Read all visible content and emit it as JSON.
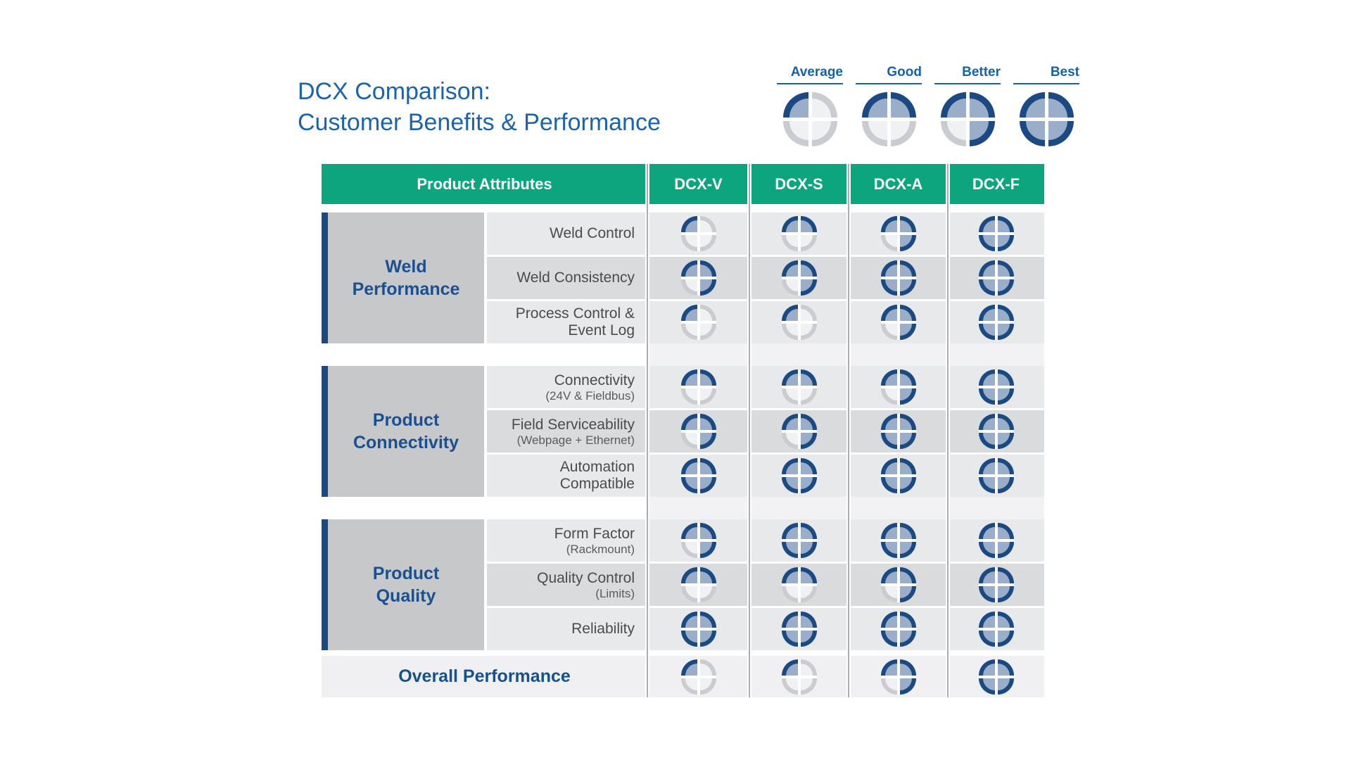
{
  "title": {
    "line1": "DCX Comparison:",
    "line2": "Customer Benefits & Performance"
  },
  "colors": {
    "header_green": "#0CA57D",
    "title_blue": "#1A63AE",
    "legend_blue": "#1761AC",
    "group_label_blue": "#1B5090",
    "ball_ring_filled": "#1B4A83",
    "ball_fill_filled": "#9AAEC9",
    "ball_ring_empty": "#CACCD1",
    "ball_fill_empty": "#F0F1F3",
    "row_light": "#E8E9EA",
    "row_dark": "#DADBDD",
    "group_box_gray": "#C7C8CA",
    "overall_row_bg": "#F0F0F2"
  },
  "rating_scale": {
    "1": "Average",
    "2": "Good",
    "3": "Better",
    "4": "Best"
  },
  "legend": {
    "items": [
      {
        "label": "Average",
        "level": 1
      },
      {
        "label": "Good",
        "level": 2
      },
      {
        "label": "Better",
        "level": 3
      },
      {
        "label": "Best",
        "level": 4
      }
    ]
  },
  "table": {
    "header": {
      "attributes_label": "Product Attributes",
      "columns": [
        "DCX-V",
        "DCX-S",
        "DCX-A",
        "DCX-F"
      ]
    },
    "groups": [
      {
        "name": "Weld\nPerformance",
        "rows": [
          {
            "attribute": "Weld Control",
            "subtitle": "",
            "ratings": [
              1,
              2,
              3,
              4
            ]
          },
          {
            "attribute": "Weld Consistency",
            "subtitle": "",
            "ratings": [
              3,
              3,
              4,
              4
            ]
          },
          {
            "attribute": "Process Control &\nEvent Log",
            "subtitle": "",
            "ratings": [
              1,
              1,
              3,
              4
            ]
          }
        ]
      },
      {
        "name": "Product\nConnectivity",
        "rows": [
          {
            "attribute": "Connectivity",
            "subtitle": "(24V & Fieldbus)",
            "ratings": [
              2,
              2,
              3,
              4
            ]
          },
          {
            "attribute": "Field Serviceability",
            "subtitle": "(Webpage + Ethernet)",
            "ratings": [
              3,
              3,
              4,
              4
            ]
          },
          {
            "attribute": "Automation\nCompatible",
            "subtitle": "",
            "ratings": [
              4,
              4,
              4,
              4
            ]
          }
        ]
      },
      {
        "name": "Product\nQuality",
        "rows": [
          {
            "attribute": "Form Factor",
            "subtitle": "(Rackmount)",
            "ratings": [
              3,
              4,
              4,
              4
            ]
          },
          {
            "attribute": "Quality Control",
            "subtitle": "(Limits)",
            "ratings": [
              2,
              2,
              3,
              4
            ]
          },
          {
            "attribute": "Reliability",
            "subtitle": "",
            "ratings": [
              4,
              4,
              4,
              4
            ]
          }
        ]
      }
    ],
    "overall": {
      "label": "Overall Performance",
      "ratings": [
        1,
        1,
        3,
        4
      ]
    }
  },
  "chart_data": {
    "type": "table",
    "title": "DCX Comparison: Customer Benefits & Performance",
    "legend": [
      "Average",
      "Good",
      "Better",
      "Best"
    ],
    "legend_position": "top-right",
    "rating_scale_quarters": {
      "Average": 1,
      "Good": 2,
      "Better": 3,
      "Best": 4
    },
    "columns": [
      "Product Attributes",
      "DCX-V",
      "DCX-S",
      "DCX-A",
      "DCX-F"
    ],
    "rows": [
      {
        "group": "Weld Performance",
        "attribute": "Weld Control",
        "DCX-V": "Average",
        "DCX-S": "Good",
        "DCX-A": "Better",
        "DCX-F": "Best"
      },
      {
        "group": "Weld Performance",
        "attribute": "Weld Consistency",
        "DCX-V": "Better",
        "DCX-S": "Better",
        "DCX-A": "Best",
        "DCX-F": "Best"
      },
      {
        "group": "Weld Performance",
        "attribute": "Process Control & Event Log",
        "DCX-V": "Average",
        "DCX-S": "Average",
        "DCX-A": "Better",
        "DCX-F": "Best"
      },
      {
        "group": "Product Connectivity",
        "attribute": "Connectivity (24V & Fieldbus)",
        "DCX-V": "Good",
        "DCX-S": "Good",
        "DCX-A": "Better",
        "DCX-F": "Best"
      },
      {
        "group": "Product Connectivity",
        "attribute": "Field Serviceability (Webpage + Ethernet)",
        "DCX-V": "Better",
        "DCX-S": "Better",
        "DCX-A": "Best",
        "DCX-F": "Best"
      },
      {
        "group": "Product Connectivity",
        "attribute": "Automation Compatible",
        "DCX-V": "Best",
        "DCX-S": "Best",
        "DCX-A": "Best",
        "DCX-F": "Best"
      },
      {
        "group": "Product Quality",
        "attribute": "Form Factor (Rackmount)",
        "DCX-V": "Better",
        "DCX-S": "Best",
        "DCX-A": "Best",
        "DCX-F": "Best"
      },
      {
        "group": "Product Quality",
        "attribute": "Quality Control (Limits)",
        "DCX-V": "Good",
        "DCX-S": "Good",
        "DCX-A": "Better",
        "DCX-F": "Best"
      },
      {
        "group": "Product Quality",
        "attribute": "Reliability",
        "DCX-V": "Best",
        "DCX-S": "Best",
        "DCX-A": "Best",
        "DCX-F": "Best"
      },
      {
        "group": "",
        "attribute": "Overall Performance",
        "DCX-V": "Average",
        "DCX-S": "Average",
        "DCX-A": "Better",
        "DCX-F": "Best"
      }
    ]
  }
}
